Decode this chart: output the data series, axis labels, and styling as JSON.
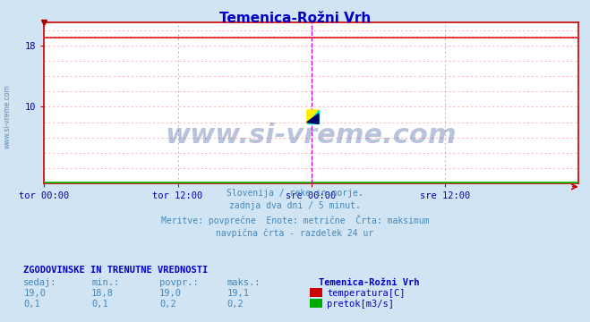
{
  "title": "Temenica-Rožni Vrh",
  "title_color": "#0000cc",
  "bg_color": "#d0e4f4",
  "plot_bg_color": "#ffffff",
  "watermark": "www.si-vreme.com",
  "watermark_color": "#1a3a8a",
  "subtitle_lines": [
    "Slovenija / reke in morje.",
    "zadnja dva dni / 5 minut.",
    "Meritve: povprečne  Enote: metrične  Črta: maksimum",
    "navpična črta - razdelek 24 ur"
  ],
  "subtitle_color": "#4488bb",
  "xlabel_ticks": [
    "tor 00:00",
    "tor 12:00",
    "sre 00:00",
    "sre 12:00"
  ],
  "xlabel_tick_positions": [
    0.0,
    0.25,
    0.5,
    0.75
  ],
  "xlabel_color": "#0000aa",
  "yticks": [
    10,
    18
  ],
  "temp_avg": 19.0,
  "temp_max": 19.1,
  "flow_value": 0.1,
  "temp_line_color": "#dd0000",
  "temp_max_color": "#ff6666",
  "flow_line_color": "#00bb00",
  "grid_h_color": "#ffaaaa",
  "grid_v_color": "#aaaaff",
  "axis_color": "#cc0000",
  "magenta_color": "#cc00cc",
  "ylim_min": 0,
  "ylim_max": 21.0,
  "legend_header": "ZGODOVINSKE IN TRENUTNE VREDNOSTI",
  "legend_color": "#0000cc",
  "col_color": "#4488bb",
  "col_headers": [
    "sedaj:",
    "min.:",
    "povpr.:",
    "maks.:"
  ],
  "temp_row": [
    "19,0",
    "18,8",
    "19,0",
    "19,1"
  ],
  "flow_row": [
    "0,1",
    "0,1",
    "0,2",
    "0,2"
  ],
  "station_label": "Temenica-Rožni Vrh",
  "temp_label": "temperatura[C]",
  "flow_label": "pretok[m3/s]",
  "temp_color_box": "#cc0000",
  "flow_color_box": "#00aa00",
  "num_points": 576,
  "left_text": "www.si-vreme.com"
}
